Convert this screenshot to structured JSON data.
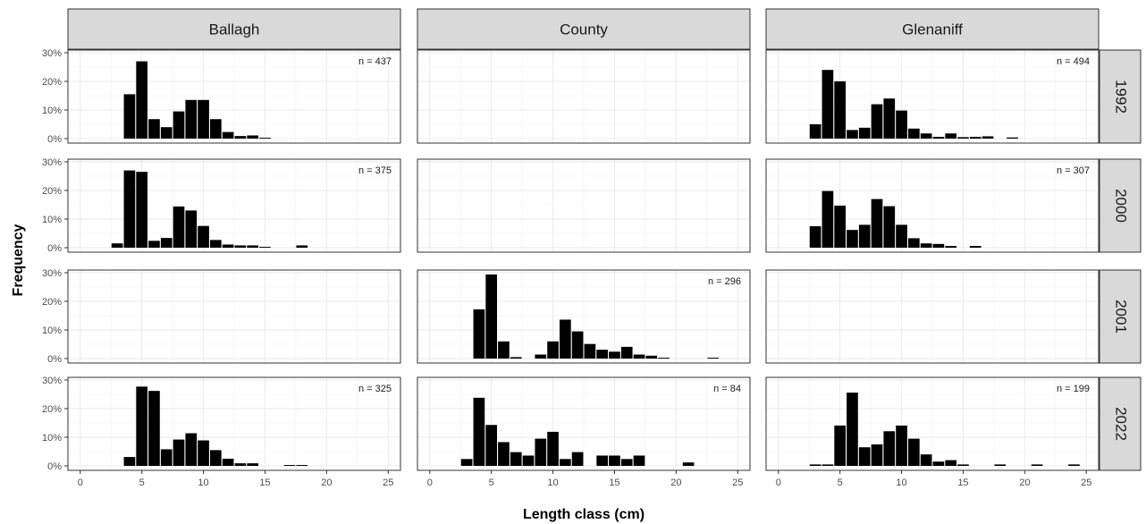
{
  "chart_data": {
    "type": "bar",
    "facet_columns": [
      "Ballagh",
      "County",
      "Glenaniff"
    ],
    "facet_rows": [
      "1992",
      "2000",
      "2001",
      "2022"
    ],
    "xlabel": "Length class (cm)",
    "ylabel": "Frequency",
    "xlim": [
      -1,
      26
    ],
    "ylim": [
      0,
      30
    ],
    "x_ticks": [
      "0",
      "5",
      "10",
      "15",
      "20",
      "25"
    ],
    "y_ticks": [
      "0%",
      "10%",
      "20%",
      "30%"
    ],
    "y_unit": "%",
    "grid": true,
    "bar_color": "#000000",
    "panels": [
      {
        "column": "Ballagh",
        "row": "1992",
        "n_label": "n = 437",
        "bars": [
          {
            "x": 4,
            "y": 15.5
          },
          {
            "x": 5,
            "y": 27
          },
          {
            "x": 6,
            "y": 6.8
          },
          {
            "x": 7,
            "y": 4
          },
          {
            "x": 8,
            "y": 9.5
          },
          {
            "x": 9,
            "y": 13.5
          },
          {
            "x": 10,
            "y": 13.5
          },
          {
            "x": 11,
            "y": 6.8
          },
          {
            "x": 12,
            "y": 2.3
          },
          {
            "x": 13,
            "y": 0.9
          },
          {
            "x": 14,
            "y": 1.1
          },
          {
            "x": 15,
            "y": 0.3
          }
        ]
      },
      {
        "column": "County",
        "row": "1992",
        "n_label": "",
        "bars": []
      },
      {
        "column": "Glenaniff",
        "row": "1992",
        "n_label": "n = 494",
        "bars": [
          {
            "x": 3,
            "y": 5
          },
          {
            "x": 4,
            "y": 24
          },
          {
            "x": 5,
            "y": 20
          },
          {
            "x": 6,
            "y": 3
          },
          {
            "x": 7,
            "y": 3.8
          },
          {
            "x": 8,
            "y": 12
          },
          {
            "x": 9,
            "y": 14
          },
          {
            "x": 10,
            "y": 9.8
          },
          {
            "x": 11,
            "y": 3.5
          },
          {
            "x": 12,
            "y": 1.8
          },
          {
            "x": 13,
            "y": 0.6
          },
          {
            "x": 14,
            "y": 1.8
          },
          {
            "x": 15,
            "y": 0.5
          },
          {
            "x": 16,
            "y": 0.6
          },
          {
            "x": 17,
            "y": 0.8
          },
          {
            "x": 19,
            "y": 0.4
          }
        ]
      },
      {
        "column": "Ballagh",
        "row": "2000",
        "n_label": "n = 375",
        "bars": [
          {
            "x": 3,
            "y": 1.5
          },
          {
            "x": 4,
            "y": 27
          },
          {
            "x": 5,
            "y": 26.5
          },
          {
            "x": 6,
            "y": 2.4
          },
          {
            "x": 7,
            "y": 3.4
          },
          {
            "x": 8,
            "y": 14.4
          },
          {
            "x": 9,
            "y": 13
          },
          {
            "x": 10,
            "y": 7.6
          },
          {
            "x": 11,
            "y": 2.7
          },
          {
            "x": 12,
            "y": 1.1
          },
          {
            "x": 13,
            "y": 0.8
          },
          {
            "x": 14,
            "y": 0.8
          },
          {
            "x": 15,
            "y": 0.3
          },
          {
            "x": 18,
            "y": 0.8
          }
        ]
      },
      {
        "column": "County",
        "row": "2000",
        "n_label": "",
        "bars": []
      },
      {
        "column": "Glenaniff",
        "row": "2000",
        "n_label": "n = 307",
        "bars": [
          {
            "x": 3,
            "y": 7.5
          },
          {
            "x": 4,
            "y": 19.8
          },
          {
            "x": 5,
            "y": 14.7
          },
          {
            "x": 6,
            "y": 6.2
          },
          {
            "x": 7,
            "y": 8
          },
          {
            "x": 8,
            "y": 17
          },
          {
            "x": 9,
            "y": 14.5
          },
          {
            "x": 10,
            "y": 8
          },
          {
            "x": 11,
            "y": 3.3
          },
          {
            "x": 12,
            "y": 1.5
          },
          {
            "x": 13,
            "y": 1.3
          },
          {
            "x": 14,
            "y": 0.6
          },
          {
            "x": 16,
            "y": 0.6
          }
        ]
      },
      {
        "column": "Ballagh",
        "row": "2001",
        "n_label": "",
        "bars": []
      },
      {
        "column": "County",
        "row": "2001",
        "n_label": "n = 296",
        "bars": [
          {
            "x": 4,
            "y": 17.2
          },
          {
            "x": 5,
            "y": 29.4
          },
          {
            "x": 6,
            "y": 6
          },
          {
            "x": 7,
            "y": 0.5
          },
          {
            "x": 9,
            "y": 1.4
          },
          {
            "x": 10,
            "y": 6
          },
          {
            "x": 11,
            "y": 13.6
          },
          {
            "x": 12,
            "y": 9.5
          },
          {
            "x": 13,
            "y": 5.1
          },
          {
            "x": 14,
            "y": 3.1
          },
          {
            "x": 15,
            "y": 2.4
          },
          {
            "x": 16,
            "y": 4.1
          },
          {
            "x": 17,
            "y": 1.4
          },
          {
            "x": 18,
            "y": 1
          },
          {
            "x": 19,
            "y": 0.3
          },
          {
            "x": 23,
            "y": 0.3
          }
        ]
      },
      {
        "column": "Glenaniff",
        "row": "2001",
        "n_label": "",
        "bars": []
      },
      {
        "column": "Ballagh",
        "row": "2022",
        "n_label": "n = 325",
        "bars": [
          {
            "x": 4,
            "y": 3.1
          },
          {
            "x": 5,
            "y": 27.7
          },
          {
            "x": 6,
            "y": 26.2
          },
          {
            "x": 7,
            "y": 5.8
          },
          {
            "x": 8,
            "y": 9.2
          },
          {
            "x": 9,
            "y": 11.4
          },
          {
            "x": 10,
            "y": 8.9
          },
          {
            "x": 11,
            "y": 5.5
          },
          {
            "x": 12,
            "y": 2.5
          },
          {
            "x": 13,
            "y": 0.9
          },
          {
            "x": 14,
            "y": 0.9
          },
          {
            "x": 17,
            "y": 0.3
          },
          {
            "x": 18,
            "y": 0.3
          }
        ]
      },
      {
        "column": "County",
        "row": "2022",
        "n_label": "n = 84",
        "bars": [
          {
            "x": 3,
            "y": 2.4
          },
          {
            "x": 4,
            "y": 23.8
          },
          {
            "x": 5,
            "y": 14.3
          },
          {
            "x": 6,
            "y": 8.3
          },
          {
            "x": 7,
            "y": 4.8
          },
          {
            "x": 8,
            "y": 3.6
          },
          {
            "x": 9,
            "y": 9.5
          },
          {
            "x": 10,
            "y": 11.9
          },
          {
            "x": 11,
            "y": 2.4
          },
          {
            "x": 12,
            "y": 4.8
          },
          {
            "x": 14,
            "y": 3.6
          },
          {
            "x": 15,
            "y": 3.6
          },
          {
            "x": 16,
            "y": 2.4
          },
          {
            "x": 17,
            "y": 3.6
          },
          {
            "x": 21,
            "y": 1.2
          }
        ]
      },
      {
        "column": "Glenaniff",
        "row": "2022",
        "n_label": "n = 199",
        "bars": [
          {
            "x": 3,
            "y": 0.5
          },
          {
            "x": 4,
            "y": 0.5
          },
          {
            "x": 5,
            "y": 14.1
          },
          {
            "x": 6,
            "y": 25.6
          },
          {
            "x": 7,
            "y": 6.5
          },
          {
            "x": 8,
            "y": 7.5
          },
          {
            "x": 9,
            "y": 12.1
          },
          {
            "x": 10,
            "y": 14.1
          },
          {
            "x": 11,
            "y": 9.5
          },
          {
            "x": 12,
            "y": 4
          },
          {
            "x": 13,
            "y": 1.5
          },
          {
            "x": 14,
            "y": 2
          },
          {
            "x": 15,
            "y": 0.5
          },
          {
            "x": 18,
            "y": 0.5
          },
          {
            "x": 21,
            "y": 0.5
          },
          {
            "x": 24,
            "y": 0.5
          }
        ]
      }
    ]
  }
}
